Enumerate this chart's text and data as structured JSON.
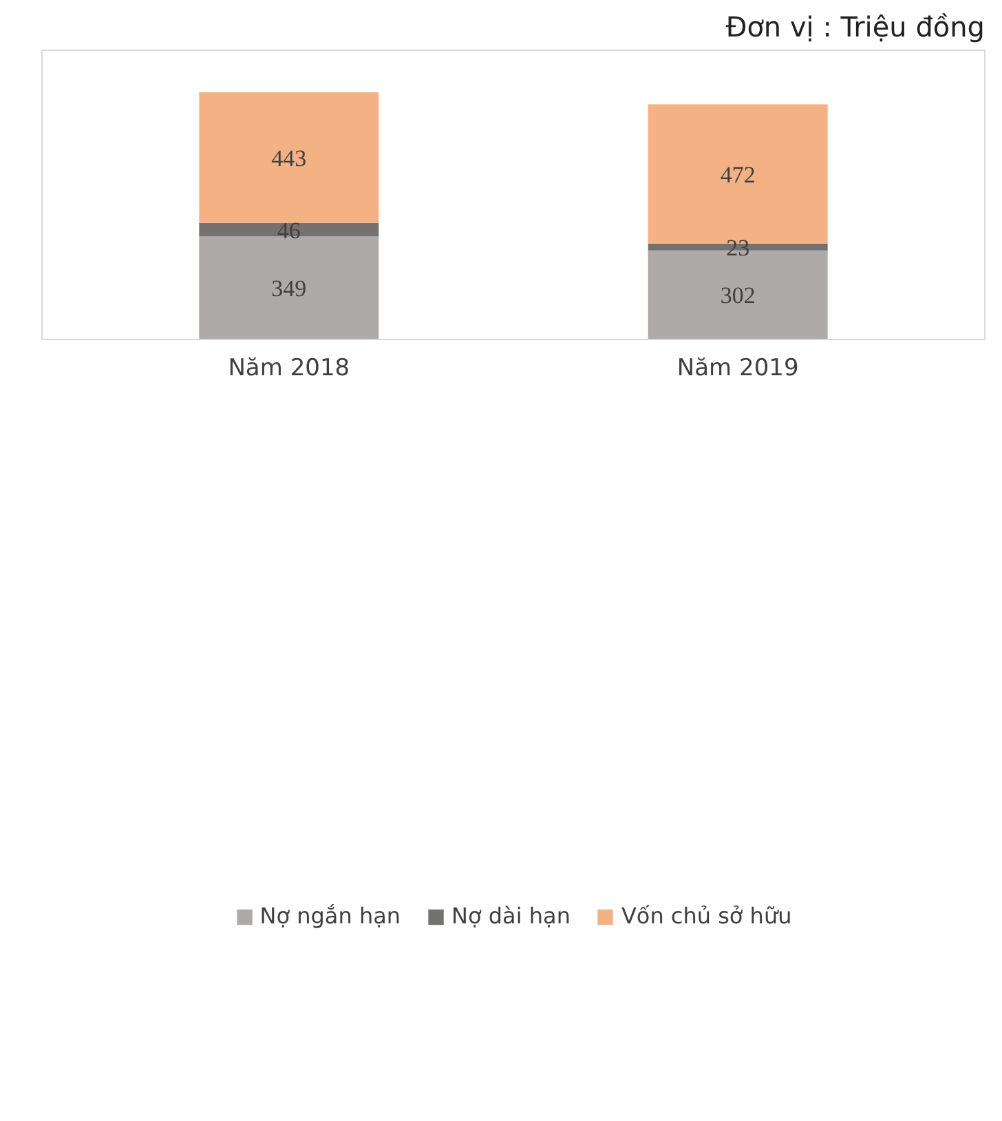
{
  "chart_data": {
    "type": "bar",
    "stacked": true,
    "categories": [
      "Năm 2018",
      "Năm 2019"
    ],
    "series": [
      {
        "name": "Nợ ngắn hạn",
        "color": "#aeaaaa",
        "values": [
          349,
          302
        ]
      },
      {
        "name": "Nợ dài hạn",
        "color": "#767171",
        "values": [
          46,
          23
        ]
      },
      {
        "name": "Vốn chủ sở hữu",
        "color": "#f4b183",
        "values": [
          443,
          472
        ]
      }
    ],
    "data_labels": true,
    "legend": "bottom",
    "grid": false,
    "annotations": [
      "Đơn vị : Triệu đồng"
    ]
  }
}
